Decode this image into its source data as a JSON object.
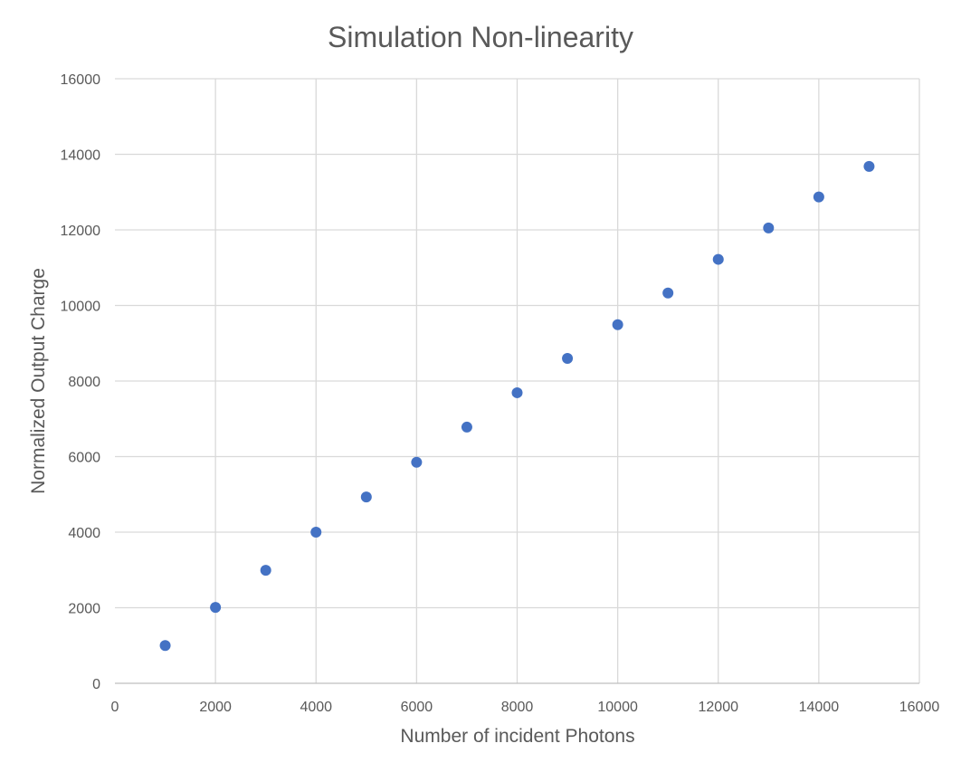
{
  "chart_data": {
    "type": "scatter",
    "title": "Simulation Non-linearity",
    "xlabel": "Number of incident Photons",
    "ylabel": "Normalized Output Charge",
    "xlim": [
      0,
      16000
    ],
    "ylim": [
      0,
      16000
    ],
    "xticks": [
      0,
      2000,
      4000,
      6000,
      8000,
      10000,
      12000,
      14000,
      16000
    ],
    "yticks": [
      0,
      2000,
      4000,
      6000,
      8000,
      10000,
      12000,
      14000,
      16000
    ],
    "grid": true,
    "legend": "none",
    "series": [
      {
        "color": "#4472c4",
        "x": [
          1000,
          2000,
          3000,
          4000,
          5000,
          6000,
          7000,
          8000,
          9000,
          10000,
          11000,
          12000,
          13000,
          14000,
          15000
        ],
        "y": [
          1000,
          2010,
          2990,
          4000,
          4930,
          5850,
          6780,
          7690,
          8600,
          9490,
          10330,
          11220,
          12050,
          12870,
          13680
        ]
      }
    ]
  }
}
